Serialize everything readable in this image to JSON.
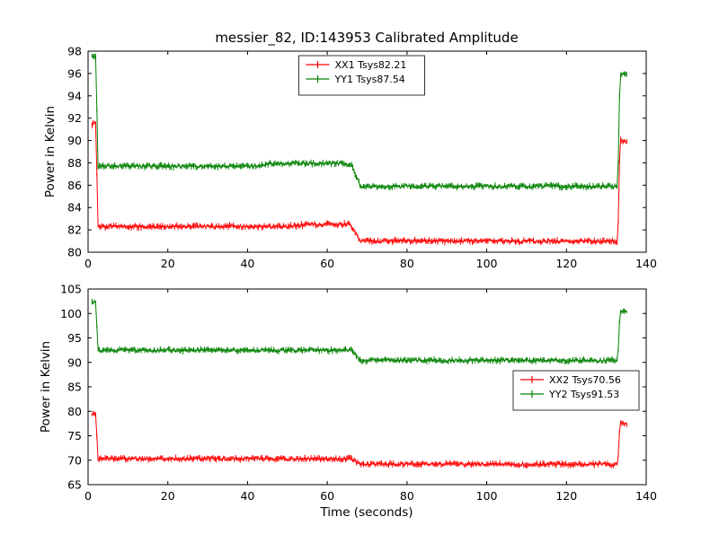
{
  "chart_data": [
    {
      "type": "line",
      "title": "messier_82, ID:143953 Calibrated Amplitude",
      "ylabel": "Power in Kelvin",
      "xlabel": "",
      "xlim": [
        0,
        140
      ],
      "ylim": [
        80,
        98
      ],
      "xticks": [
        0,
        20,
        40,
        60,
        80,
        100,
        120,
        140
      ],
      "yticks": [
        80,
        82,
        84,
        86,
        88,
        90,
        92,
        94,
        96,
        98
      ],
      "grid": false,
      "legend_position": "top-center",
      "series": [
        {
          "name": "XX1 Tsys82.21",
          "color": "#ff0000",
          "noise": 0.14,
          "err": 0.2,
          "segments": [
            [
              1.0,
              2.0,
              91.5
            ],
            [
              2.4,
              50.0,
              82.3
            ],
            [
              56.0,
              65.8,
              82.5
            ],
            [
              68.3,
              132.9,
              81.0
            ],
            [
              133.4,
              135.2,
              90.0
            ]
          ]
        },
        {
          "name": "YY1 Tsys87.54",
          "color": "#008000",
          "noise": 0.14,
          "err": 0.2,
          "segments": [
            [
              1.0,
              2.0,
              97.6
            ],
            [
              2.4,
              42.0,
              87.7
            ],
            [
              46.0,
              63.0,
              87.95
            ],
            [
              65.5,
              66.2,
              87.75
            ],
            [
              68.3,
              132.9,
              85.9
            ],
            [
              133.4,
              135.2,
              96.0
            ]
          ]
        }
      ]
    },
    {
      "type": "line",
      "title": "",
      "ylabel": "Power in Kelvin",
      "xlabel": "Time (seconds)",
      "xlim": [
        0,
        140
      ],
      "ylim": [
        65,
        105
      ],
      "xticks": [
        0,
        20,
        40,
        60,
        80,
        100,
        120,
        140
      ],
      "yticks": [
        65,
        70,
        75,
        80,
        85,
        90,
        95,
        100,
        105
      ],
      "grid": false,
      "legend_position": "mid-right",
      "series": [
        {
          "name": "XX2 Tsys70.56",
          "color": "#ff0000",
          "noise": 0.3,
          "err": 0.45,
          "segments": [
            [
              1.0,
              2.0,
              79.5
            ],
            [
              2.4,
              66.0,
              70.3
            ],
            [
              68.3,
              132.9,
              69.2
            ],
            [
              133.4,
              135.2,
              77.5
            ]
          ]
        },
        {
          "name": "YY2 Tsys91.53",
          "color": "#008000",
          "noise": 0.3,
          "err": 0.45,
          "segments": [
            [
              1.0,
              2.0,
              102.3
            ],
            [
              2.4,
              66.0,
              92.5
            ],
            [
              68.3,
              132.9,
              90.4
            ],
            [
              133.4,
              135.2,
              100.3
            ]
          ]
        }
      ]
    }
  ]
}
